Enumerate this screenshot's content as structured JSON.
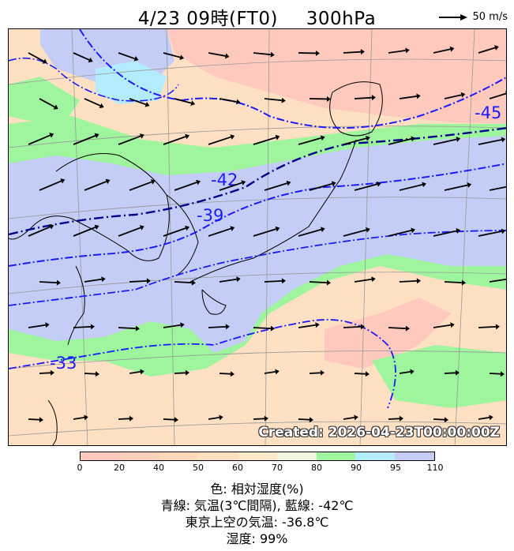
{
  "header": {
    "datetime": "4/23 09時(FT0)",
    "level": "300hPa",
    "wind_reference": "50 m/s"
  },
  "map": {
    "created_stamp": "Created: 2026-04-23T00:00:00Z",
    "contour_labels": [
      "-45",
      "-42",
      "-39",
      "-33"
    ],
    "colors": {
      "rh_0_20": "#ffc9bd",
      "rh_20_50": "#ffd9b8",
      "rh_50_70": "#ffe8c9",
      "rh_70_80": "#e6f7d9",
      "rh_80_90": "#9ef59e",
      "rh_90_95": "#b3ecff",
      "rh_95_110": "#c4cdf5",
      "temp_contour": "#1a1aff",
      "temp_highlight": "#00008b",
      "wind_arrow": "#000000"
    }
  },
  "colorbar": {
    "ticks": [
      "0",
      "20",
      "40",
      "50",
      "60",
      "70",
      "80",
      "90",
      "95",
      "110"
    ],
    "bins": [
      "#ffc9bd",
      "#ffd0bb",
      "#ffd9b8",
      "#ffe0c2",
      "#ffe8c9",
      "#f0f7e0",
      "#9ef59e",
      "#b3ecff",
      "#c4cdf5"
    ]
  },
  "info": {
    "line1": "色: 相対湿度(%)",
    "line2": "青線: 気温(3℃間隔), 藍線: -42℃",
    "line3": "東京上空の気温: -36.8℃",
    "line4": "湿度: 99%"
  }
}
